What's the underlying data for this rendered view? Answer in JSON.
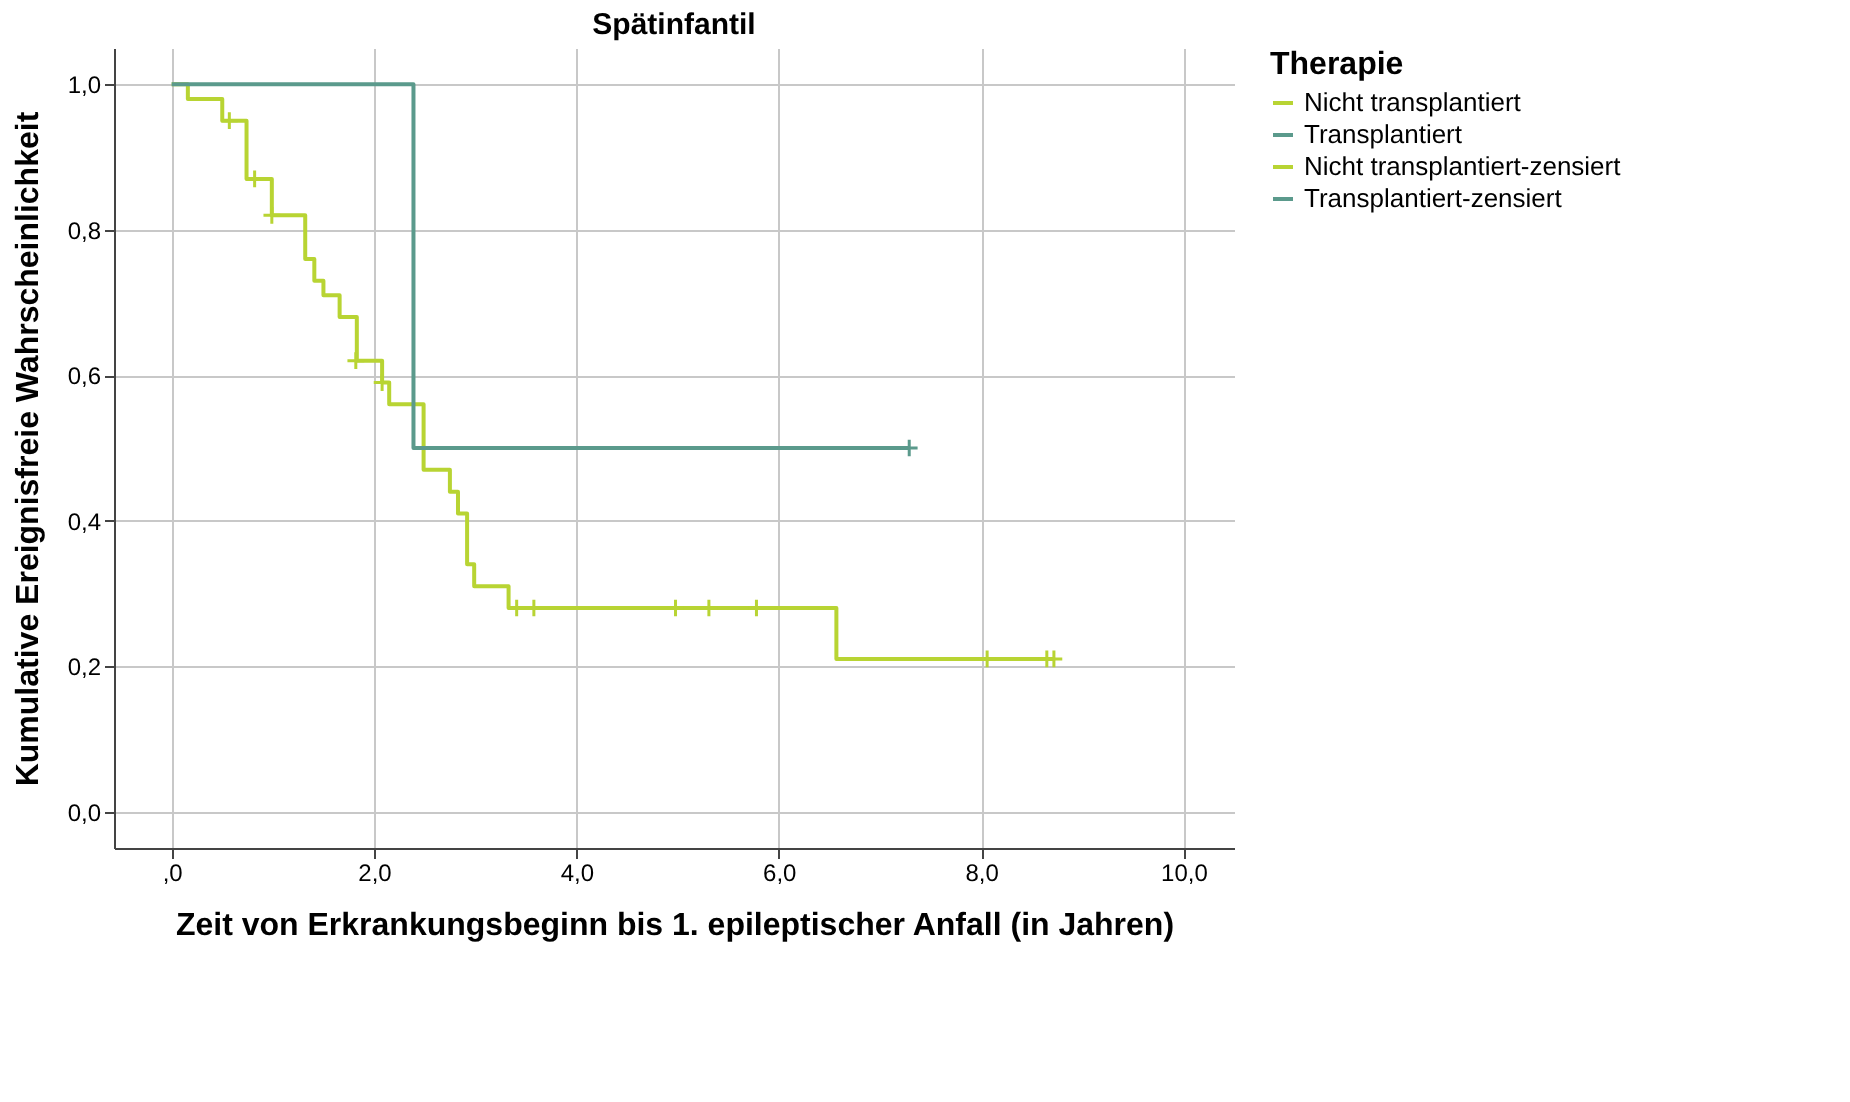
{
  "chart_data": {
    "type": "step",
    "title": "Spätinfantil",
    "xlabel": "Zeit von Erkrankungsbeginn bis 1. epileptischer Anfall (in Jahren)",
    "ylabel": "Kumulative Ereignisfreie Wahrscheinlichkeit",
    "legend_title": "Therapie",
    "series": [
      {
        "name": "Nicht transplantiert",
        "color": "#b8d433",
        "x": [
          0,
          0.16,
          0.5,
          0.74,
          0.99,
          1.32,
          1.41,
          1.5,
          1.66,
          1.83,
          2.08,
          2.15,
          2.49,
          2.75,
          2.83,
          2.92,
          2.99,
          3.33,
          6.57,
          8.72
        ],
        "values": [
          1.0,
          0.98,
          0.95,
          0.87,
          0.82,
          0.76,
          0.73,
          0.71,
          0.68,
          0.62,
          0.59,
          0.56,
          0.47,
          0.44,
          0.41,
          0.34,
          0.31,
          0.28,
          0.21,
          0.21
        ]
      },
      {
        "name": "Transplantiert",
        "color": "#5b9a8c",
        "x": [
          0,
          2.39,
          7.29
        ],
        "values": [
          1.0,
          0.5,
          0.5
        ]
      },
      {
        "name": "Nicht transplantiert-zensiert",
        "type": "scatter",
        "marker": "cross",
        "color": "#b8d433",
        "x": [
          0.57,
          0.82,
          0.99,
          1.82,
          2.08,
          3.41,
          3.58,
          4.98,
          5.31,
          5.78,
          8.06,
          8.65,
          8.72
        ],
        "values": [
          0.95,
          0.87,
          0.82,
          0.62,
          0.59,
          0.28,
          0.28,
          0.28,
          0.28,
          0.28,
          0.21,
          0.21,
          0.21
        ]
      },
      {
        "name": "Transplantiert-zensiert",
        "type": "scatter",
        "marker": "cross",
        "color": "#5b9a8c",
        "x": [
          7.29
        ],
        "values": [
          0.5
        ]
      }
    ],
    "xlim": [
      -0.57,
      10.5
    ],
    "ylim": [
      -0.05,
      1.05
    ],
    "xticks": [
      {
        "value": 0,
        "label": ",0"
      },
      {
        "value": 2,
        "label": "2,0"
      },
      {
        "value": 4,
        "label": "4,0"
      },
      {
        "value": 6,
        "label": "6,0"
      },
      {
        "value": 8,
        "label": "8,0"
      },
      {
        "value": 10,
        "label": "10,0"
      }
    ],
    "yticks": [
      {
        "value": 0,
        "label": "0,0"
      },
      {
        "value": 0.2,
        "label": "0,2"
      },
      {
        "value": 0.4,
        "label": "0,4"
      },
      {
        "value": 0.6,
        "label": "0,6"
      },
      {
        "value": 0.8,
        "label": "0,8"
      },
      {
        "value": 1.0,
        "label": "1,0"
      }
    ],
    "grid": true,
    "legend": "right"
  }
}
